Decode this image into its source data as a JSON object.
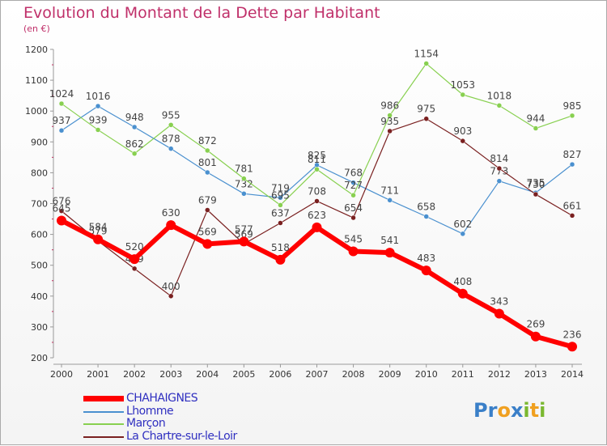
{
  "title": "Evolution du Montant de la Dette par Habitant",
  "subtitle": "(en €)",
  "logo": {
    "text": "Proxiti",
    "letters": [
      {
        "ch": "P",
        "color": "#3a7fc8"
      },
      {
        "ch": "r",
        "color": "#3a7fc8"
      },
      {
        "ch": "o",
        "color": "#f0a020"
      },
      {
        "ch": "x",
        "color": "#3a7fc8"
      },
      {
        "ch": "i",
        "color": "#7ab830"
      },
      {
        "ch": "t",
        "color": "#f0a020"
      },
      {
        "ch": "i",
        "color": "#7ab830"
      }
    ]
  },
  "chart_data": {
    "type": "line",
    "title": "Evolution du Montant de la Dette par Habitant",
    "subtitle": "(en €)",
    "x": [
      "2000",
      "2001",
      "2002",
      "2003",
      "2004",
      "2005",
      "2006",
      "2007",
      "2008",
      "2009",
      "2010",
      "2011",
      "2012",
      "2013",
      "2014"
    ],
    "ylim": [
      200,
      1200
    ],
    "yticks": [
      "200",
      "300",
      "400",
      "500",
      "600",
      "700",
      "800",
      "900",
      "1000",
      "1100",
      "1200"
    ],
    "grid": false,
    "legend_position": "bottom-left",
    "series": [
      {
        "name": "CHAHAIGNES",
        "color": "#ff0000",
        "values": [
          645,
          584,
          520,
          630,
          569,
          577,
          518,
          623,
          545,
          541,
          483,
          408,
          343,
          269,
          236
        ]
      },
      {
        "name": "Lhomme",
        "color": "#4a90cf",
        "values": [
          937,
          1016,
          948,
          878,
          801,
          732,
          719,
          825,
          768,
          711,
          658,
          602,
          773,
          735,
          827
        ]
      },
      {
        "name": "Marçon",
        "color": "#88d050",
        "values": [
          1024,
          939,
          862,
          955,
          872,
          781,
          695,
          811,
          727,
          986,
          1154,
          1053,
          1018,
          944,
          985
        ]
      },
      {
        "name": "La Chartre-sur-le-Loir",
        "color": "#7a2020",
        "values": [
          676,
          579,
          489,
          400,
          679,
          569,
          637,
          708,
          654,
          935,
          975,
          903,
          814,
          730,
          661
        ]
      }
    ]
  }
}
